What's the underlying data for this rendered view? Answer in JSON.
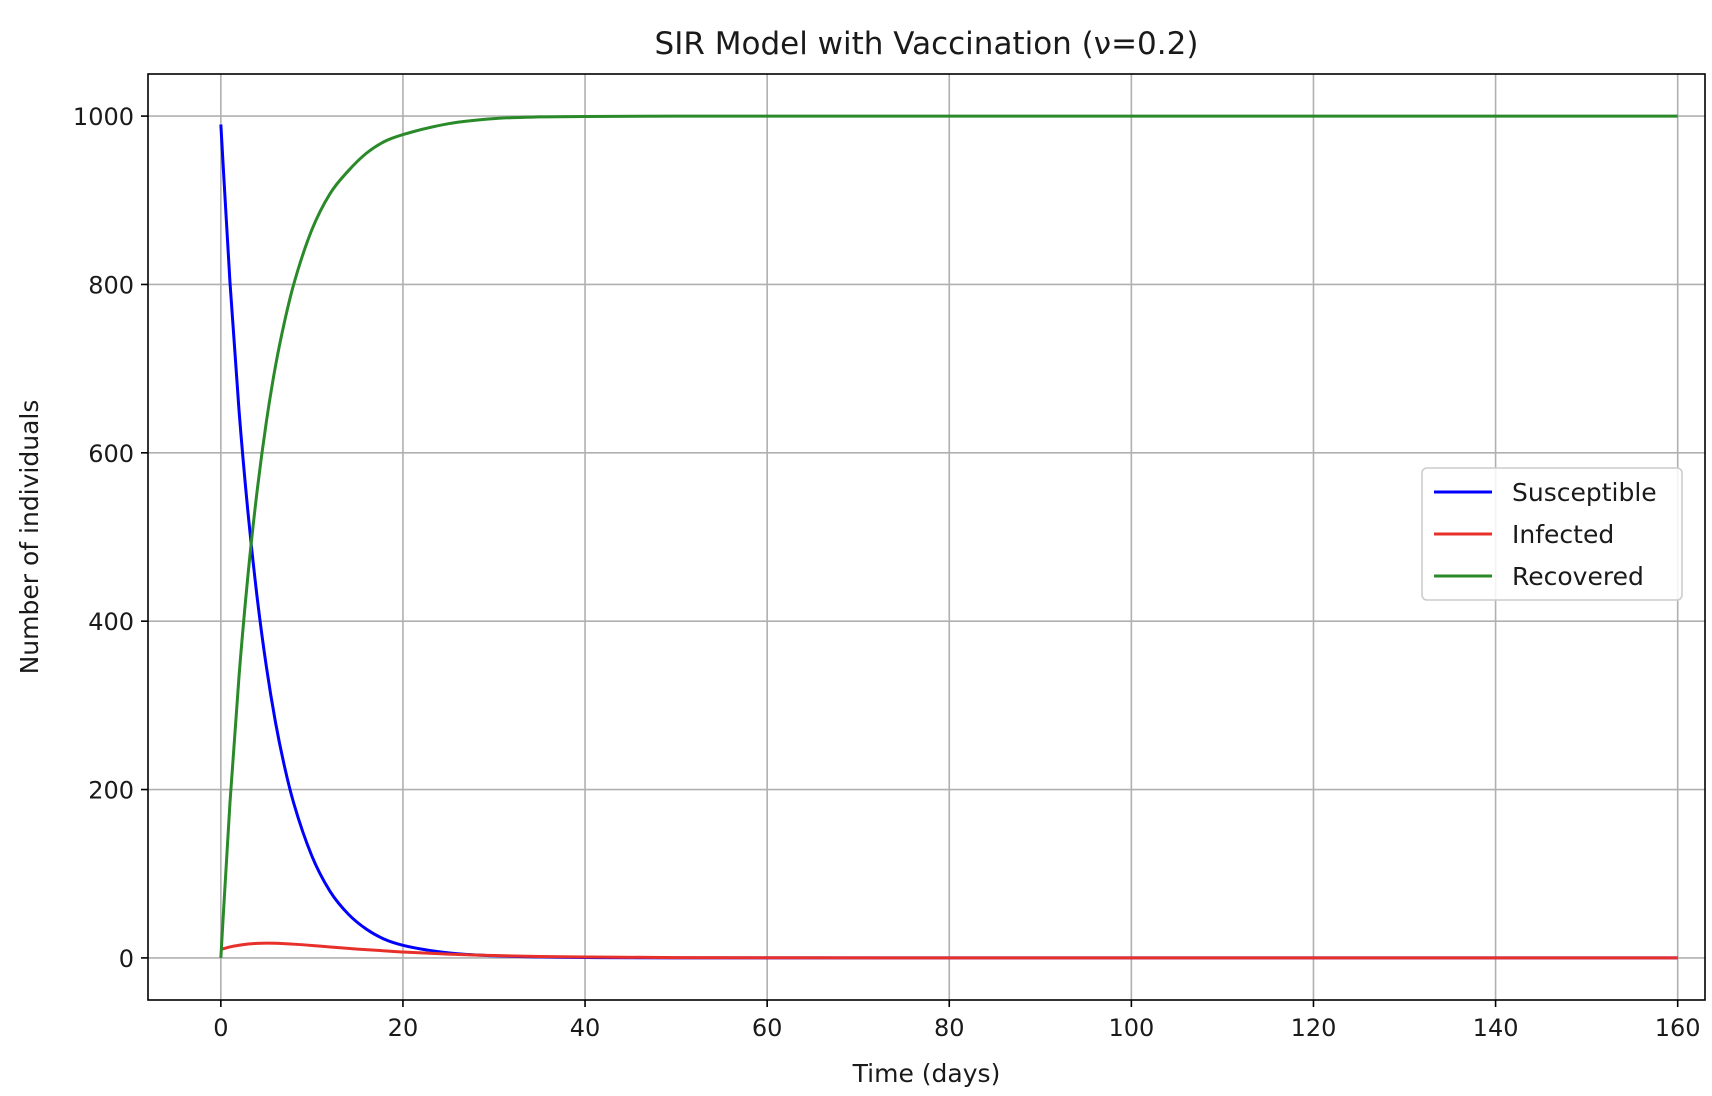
{
  "chart_data": {
    "type": "line",
    "title": "SIR Model with Vaccination (ν=0.2)",
    "xlabel": "Time (days)",
    "ylabel": "Number of individuals",
    "xlim": [
      -8,
      163
    ],
    "ylim": [
      -50,
      1050
    ],
    "xticks": [
      0,
      20,
      40,
      60,
      80,
      100,
      120,
      140,
      160
    ],
    "yticks": [
      0,
      200,
      400,
      600,
      800,
      1000
    ],
    "grid": true,
    "legend_position": "center-right",
    "x_range": [
      0,
      160
    ],
    "series": [
      {
        "name": "Susceptible",
        "color": "#0000ff",
        "x": [
          0,
          1,
          2,
          3,
          4,
          5,
          6,
          7,
          8,
          10,
          12,
          14,
          16,
          18,
          20,
          25,
          30,
          35,
          40,
          50,
          60,
          80,
          100,
          120,
          140,
          160
        ],
        "y": [
          990,
          803,
          650,
          527,
          427,
          346,
          280,
          227,
          184,
          121,
          79,
          52,
          34,
          22,
          15,
          6,
          2.5,
          1.2,
          0.5,
          0.1,
          0,
          0,
          0,
          0,
          0,
          0
        ]
      },
      {
        "name": "Infected",
        "color": "#e8302a",
        "x": [
          0,
          1,
          2,
          3,
          4,
          5,
          6,
          8,
          10,
          12,
          15,
          20,
          25,
          30,
          35,
          40,
          50,
          60,
          80,
          100,
          120,
          140,
          160
        ],
        "y": [
          10,
          13,
          15,
          16.5,
          17.3,
          17.6,
          17.4,
          16.3,
          14.8,
          13,
          10.5,
          7,
          4.5,
          2.8,
          1.7,
          1.1,
          0.4,
          0.2,
          0,
          0,
          0,
          0,
          0
        ]
      },
      {
        "name": "Recovered",
        "color": "#2a8a2a",
        "x": [
          0,
          1,
          2,
          3,
          4,
          5,
          6,
          7,
          8,
          10,
          12,
          14,
          16,
          18,
          20,
          25,
          30,
          35,
          40,
          50,
          60,
          80,
          100,
          120,
          140,
          160
        ],
        "y": [
          0,
          184,
          335,
          457,
          556,
          637,
          703,
          756,
          800,
          865,
          908,
          935,
          956,
          970,
          978,
          991,
          997,
          999,
          999.5,
          1000,
          1000,
          1000,
          1000,
          1000,
          1000,
          1000
        ]
      }
    ]
  }
}
